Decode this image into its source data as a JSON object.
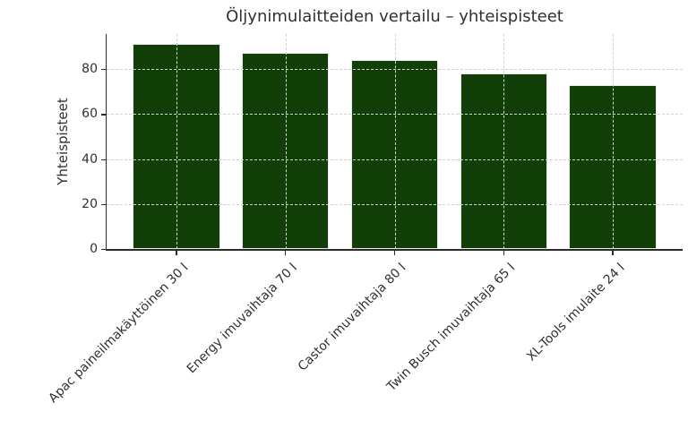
{
  "figure": {
    "background": "#ffffff"
  },
  "chart_data": {
    "type": "bar",
    "title": "Öljynimulaitteiden vertailu – yhteispisteet",
    "categories": [
      "Apac paineilmakäyttöinen 30 l",
      "Energy imuvaihtaja 70 l",
      "Castor imuvaihtaja 80 l",
      "Twin Busch imuvaihtaja 65 l",
      "XL-Tools imulaite 24 l"
    ],
    "values": [
      91,
      87,
      84,
      78,
      73
    ],
    "xlabel": "",
    "ylabel": "Yhteispisteet",
    "ylim": [
      0,
      95.55
    ],
    "yticks": [
      0,
      20,
      40,
      60,
      80
    ],
    "grid": true,
    "grid_style": "dashed",
    "grid_position": "above-bars",
    "legend": null,
    "bar_width_fraction": 0.8,
    "xtick_label_rotation_deg": 45
  },
  "style": {
    "bar_color": "#123e08",
    "bar_edge_color": "#e8ebe6",
    "grid_color": "#d2d2d2",
    "axis_color": "#2b2b2b",
    "text_color": "#303030",
    "background": "#ffffff"
  }
}
